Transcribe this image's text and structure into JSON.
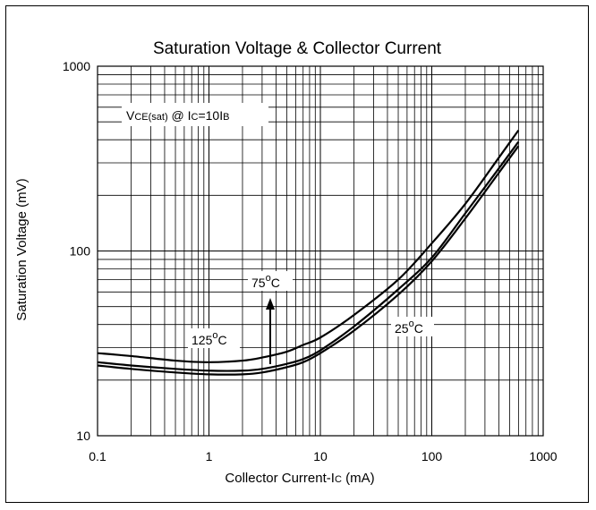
{
  "chart_data": {
    "type": "line",
    "title": "Saturation Voltage & Collector Current",
    "xlabel": {
      "main": "Collector Current-I",
      "sub": "C",
      "unit": " (mA)"
    },
    "ylabel": "Saturation Voltage (mV)",
    "xscale": "log",
    "yscale": "log",
    "xlim": [
      0.1,
      1000
    ],
    "ylim": [
      10,
      1000
    ],
    "x_ticks": [
      "0.1",
      "1",
      "10",
      "100",
      "1000"
    ],
    "y_ticks": [
      "10",
      "100",
      "1000"
    ],
    "grid": true,
    "legend": null,
    "condition": {
      "v": "V",
      "v_sub": "CE(sat)",
      "mid": " @ I",
      "i_sub": "C",
      "eq": "=10I",
      "b_sub": "B"
    },
    "annotations": {
      "t75": {
        "num": "75",
        "deg": "o",
        "unit": "C"
      },
      "t125": {
        "num": "125",
        "deg": "o",
        "unit": "C"
      },
      "t25": {
        "num": "25",
        "deg": "o",
        "unit": "C"
      }
    },
    "series": [
      {
        "name": "125°C",
        "x": [
          0.1,
          0.2,
          0.5,
          1,
          2,
          3,
          5,
          7,
          10,
          20,
          50,
          100,
          200,
          400,
          600
        ],
        "y": [
          28,
          27,
          25.5,
          25,
          25.5,
          26.5,
          28.5,
          31,
          34,
          45,
          70,
          110,
          180,
          320,
          450
        ]
      },
      {
        "name": "75°C",
        "x": [
          0.1,
          0.2,
          0.5,
          1,
          2,
          3,
          5,
          7,
          10,
          20,
          50,
          100,
          200,
          400,
          600
        ],
        "y": [
          25,
          24,
          23,
          22.5,
          22.5,
          23,
          24.5,
          26,
          29,
          39,
          62,
          92,
          160,
          280,
          390
        ]
      },
      {
        "name": "25°C",
        "x": [
          0.1,
          0.2,
          0.5,
          1,
          2,
          3,
          5,
          7,
          10,
          20,
          50,
          100,
          200,
          400,
          600
        ],
        "y": [
          24,
          23,
          22,
          21.5,
          21.5,
          22,
          23.5,
          25,
          28,
          37,
          58,
          88,
          150,
          265,
          370
        ]
      }
    ]
  }
}
